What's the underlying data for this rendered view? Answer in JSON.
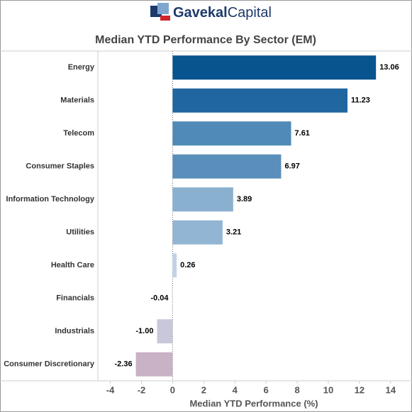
{
  "chart_data": {
    "type": "hbar",
    "logo": {
      "brand": "Gavekal",
      "suffix": "Capital"
    },
    "title": "Median YTD Performance By Sector (EM)",
    "x_label": "Median YTD Performance (%)",
    "categories": [
      "Energy",
      "Materials",
      "Telecom",
      "Consumer Staples",
      "Information Technology",
      "Utilities",
      "Health Care",
      "Financials",
      "Industrials",
      "Consumer Discretionary"
    ],
    "values": [
      13.06,
      11.23,
      7.61,
      6.97,
      3.89,
      3.21,
      0.26,
      -0.04,
      -1.0,
      -2.36
    ],
    "value_labels": [
      "13.06",
      "11.23",
      "7.61",
      "6.97",
      "3.89",
      "3.21",
      "0.26",
      "-0.04",
      "-1.00",
      "-2.36"
    ],
    "colors": [
      "#08548f",
      "#2067a0",
      "#4f8ab8",
      "#5a8fbc",
      "#8ab0d0",
      "#93b5d4",
      "#c0d3e6",
      "#e0e0ea",
      "#c8c8da",
      "#c9b1c6"
    ],
    "xlim": [
      -4.8,
      15.1
    ],
    "xticks": [
      -4,
      -2,
      0,
      2,
      4,
      6,
      8,
      10,
      12,
      14
    ]
  }
}
